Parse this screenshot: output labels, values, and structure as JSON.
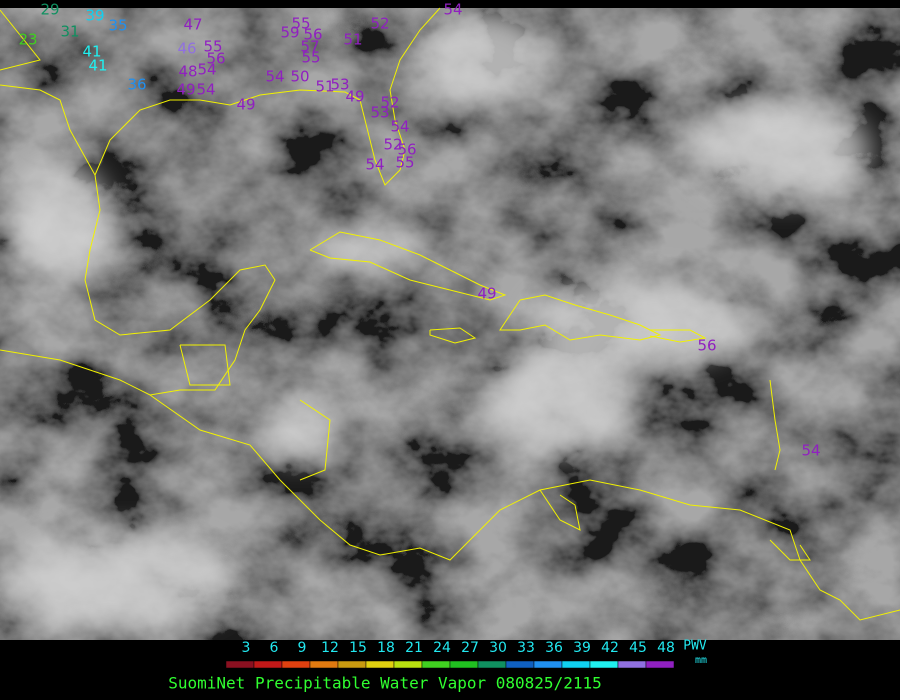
{
  "title": "SuomiNet Precipitable Water Vapor 080825/2115",
  "colorbar": {
    "label": "PWV",
    "unit": "mm",
    "ticks": [
      3,
      6,
      9,
      12,
      15,
      18,
      21,
      24,
      27,
      30,
      33,
      36,
      39,
      42,
      45,
      48
    ],
    "colors": [
      "#8a1020",
      "#c01818",
      "#e04010",
      "#e07a10",
      "#c89a10",
      "#e0d010",
      "#b8e010",
      "#40d020",
      "#20c020",
      "#109060",
      "#1060c0",
      "#2090f0",
      "#10d0f0",
      "#20f0f0",
      "#9070e0",
      "#9020c0"
    ]
  },
  "stations": [
    23,
    29,
    39,
    31,
    35,
    41,
    41,
    36,
    47,
    46,
    55,
    56,
    48,
    54,
    49,
    54,
    49,
    55,
    59,
    56,
    57,
    55,
    51,
    52,
    54,
    54,
    50,
    51,
    53,
    49,
    52,
    53,
    54,
    52,
    56,
    54,
    55,
    49,
    56,
    54
  ]
}
